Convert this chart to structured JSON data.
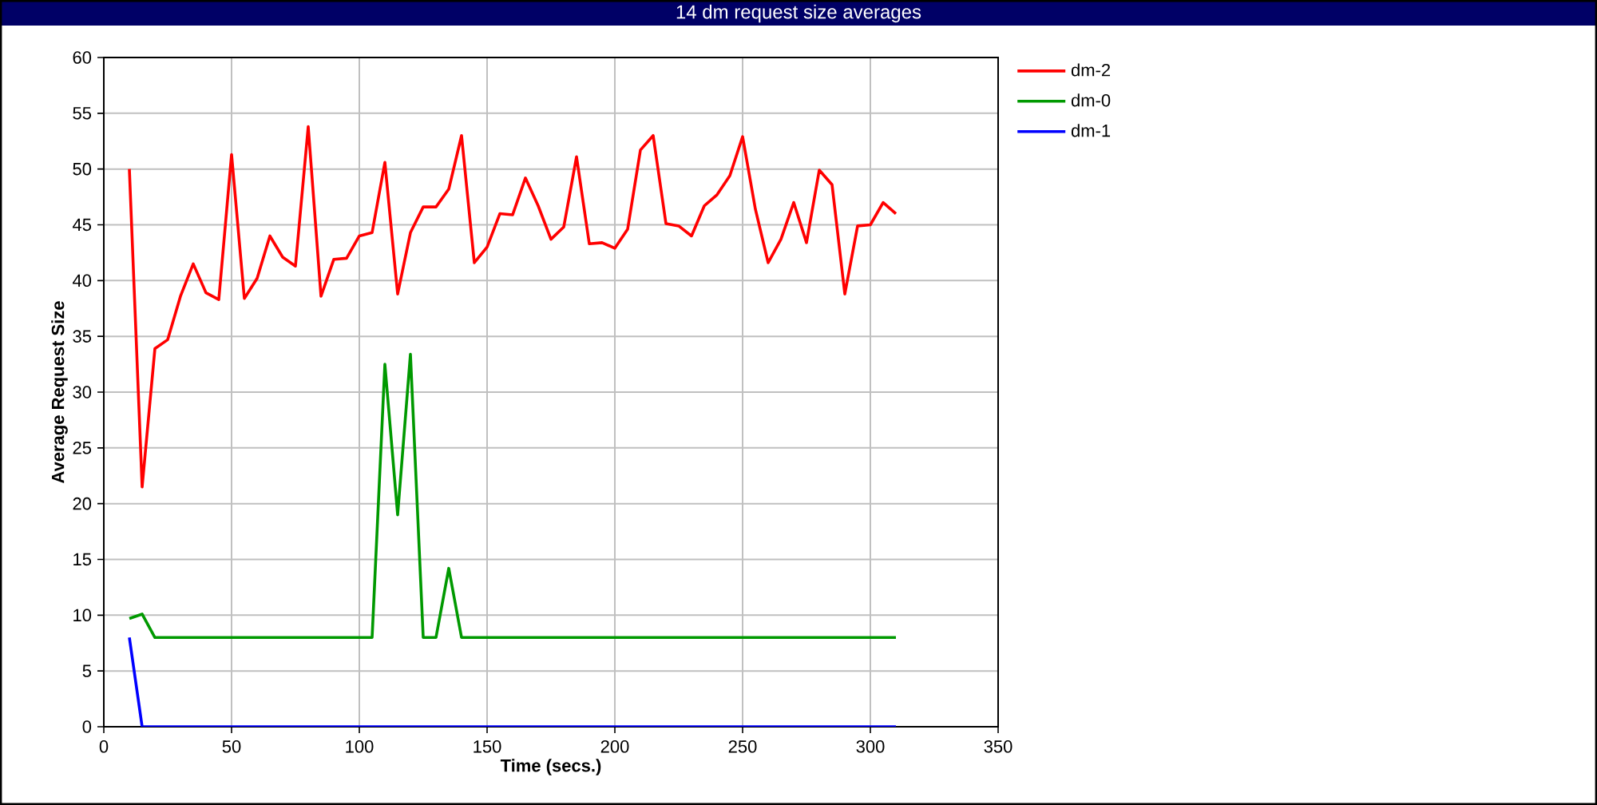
{
  "chart_data": {
    "type": "line",
    "title": "14 dm request size averages",
    "xlabel": "Time (secs.)",
    "ylabel": "Average Request Size",
    "x": [
      10,
      15,
      20,
      25,
      30,
      35,
      40,
      45,
      50,
      55,
      60,
      65,
      70,
      75,
      80,
      85,
      90,
      95,
      100,
      105,
      110,
      115,
      120,
      125,
      130,
      135,
      140,
      145,
      150,
      155,
      160,
      165,
      170,
      175,
      180,
      185,
      190,
      195,
      200,
      205,
      210,
      215,
      220,
      225,
      230,
      235,
      240,
      245,
      250,
      255,
      260,
      265,
      270,
      275,
      280,
      285,
      290,
      295,
      300,
      305,
      310
    ],
    "series": [
      {
        "name": "dm-2",
        "color": "#ff0000",
        "values": [
          50.0,
          21.5,
          33.9,
          34.7,
          38.6,
          41.5,
          38.9,
          38.3,
          51.3,
          38.4,
          40.2,
          44.0,
          42.1,
          41.3,
          53.8,
          38.6,
          41.9,
          42.0,
          44.0,
          44.3,
          50.6,
          38.8,
          44.3,
          46.6,
          46.6,
          48.2,
          53.0,
          41.6,
          43.0,
          46.0,
          45.9,
          49.2,
          46.7,
          43.7,
          44.8,
          51.1,
          43.3,
          43.4,
          42.9,
          44.6,
          51.7,
          53.0,
          45.1,
          44.9,
          44.0,
          46.7,
          47.7,
          49.4,
          52.9,
          46.4,
          41.6,
          43.7,
          47.0,
          43.4,
          49.9,
          48.6,
          38.8,
          44.9,
          45.0,
          47.0,
          46.0
        ]
      },
      {
        "name": "dm-0",
        "color": "#009900",
        "values": [
          9.7,
          10.1,
          8,
          8,
          8,
          8,
          8,
          8,
          8,
          8,
          8,
          8,
          8,
          8,
          8,
          8,
          8,
          8,
          8,
          8,
          32.5,
          19.0,
          33.4,
          8,
          8,
          14.2,
          8,
          8,
          8,
          8,
          8,
          8,
          8,
          8,
          8,
          8,
          8,
          8,
          8,
          8,
          8,
          8,
          8,
          8,
          8,
          8,
          8,
          8,
          8,
          8,
          8,
          8,
          8,
          8,
          8,
          8,
          8,
          8,
          8,
          8,
          8
        ]
      },
      {
        "name": "dm-1",
        "color": "#0000ff",
        "values": [
          8.0,
          0,
          0,
          0,
          0,
          0,
          0,
          0,
          0,
          0,
          0,
          0,
          0,
          0,
          0,
          0,
          0,
          0,
          0,
          0,
          0,
          0,
          0,
          0,
          0,
          0,
          0,
          0,
          0,
          0,
          0,
          0,
          0,
          0,
          0,
          0,
          0,
          0,
          0,
          0,
          0,
          0,
          0,
          0,
          0,
          0,
          0,
          0,
          0,
          0,
          0,
          0,
          0,
          0,
          0,
          0,
          0,
          0,
          0,
          0,
          0
        ]
      }
    ],
    "xlim": [
      0,
      350
    ],
    "ylim": [
      0,
      60
    ],
    "xticks": [
      0,
      50,
      100,
      150,
      200,
      250,
      300,
      350
    ],
    "yticks": [
      0,
      5,
      10,
      15,
      20,
      25,
      30,
      35,
      40,
      45,
      50,
      55,
      60
    ],
    "grid": true,
    "legend": "top right",
    "line_style": "solid"
  }
}
